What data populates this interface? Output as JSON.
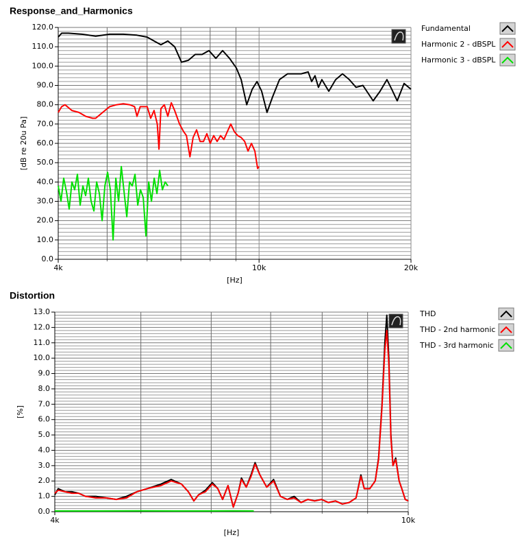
{
  "chart_data": [
    {
      "type": "line",
      "title": "Response_and_Harmonics",
      "xlabel": "[Hz]",
      "ylabel": "[dB re 20u Pa]",
      "xscale": "log",
      "xlim": [
        4000,
        20000
      ],
      "xticks": [
        {
          "value": 4000,
          "label": "4k"
        },
        {
          "value": 10000,
          "label": "10k"
        },
        {
          "value": 20000,
          "label": "20k"
        }
      ],
      "xminor_ticks": [
        5000,
        6000,
        7000,
        8000,
        9000
      ],
      "ylim": [
        0,
        120
      ],
      "yticks": [
        {
          "value": 0,
          "label": "0.0"
        },
        {
          "value": 10,
          "label": "10.0"
        },
        {
          "value": 20,
          "label": "20.0"
        },
        {
          "value": 30,
          "label": "30.0"
        },
        {
          "value": 40,
          "label": "40.0"
        },
        {
          "value": 50,
          "label": "50.0"
        },
        {
          "value": 60,
          "label": "60.0"
        },
        {
          "value": 70,
          "label": "70.0"
        },
        {
          "value": 80,
          "label": "80.0"
        },
        {
          "value": 90,
          "label": "90.0"
        },
        {
          "value": 100,
          "label": "100.0"
        },
        {
          "value": 110,
          "label": "110.0"
        },
        {
          "value": 120,
          "label": "120.0"
        }
      ],
      "grid": true,
      "legend": "right",
      "series": [
        {
          "name": "Fundamental",
          "color": "#000000",
          "x": [
            4000,
            4063,
            4190,
            4458,
            4745,
            5056,
            5383,
            5729,
            6002,
            6193,
            6390,
            6594,
            6804,
            7020,
            7243,
            7473,
            7711,
            7957,
            8210,
            8469,
            8739,
            9017,
            9218,
            9452,
            9692,
            9907,
            10120,
            10370,
            10635,
            10975,
            11391,
            12120,
            12512,
            12712,
            12910,
            13112,
            13320,
            13746,
            14180,
            14630,
            15095,
            15568,
            16062,
            16830,
            17370,
            17920,
            18320,
            18780,
            19380,
            20000
          ],
          "values": [
            115,
            117,
            117,
            116.5,
            115.5,
            116.5,
            116.5,
            116,
            115,
            113,
            111,
            113,
            110,
            102,
            103,
            106,
            106,
            108,
            104,
            108,
            104,
            99,
            93,
            80,
            88,
            92,
            87,
            76,
            84,
            93,
            96,
            96,
            97,
            92,
            95,
            89,
            93,
            87,
            93,
            96,
            93,
            89,
            90,
            82,
            87,
            93,
            88,
            82,
            91,
            88
          ]
        },
        {
          "name": "Harmonic 2 - dBSPL",
          "color": "#ff0000",
          "x": [
            4000,
            4063,
            4126,
            4258,
            4396,
            4535,
            4679,
            4745,
            4900,
            5056,
            5218,
            5383,
            5544,
            5667,
            5729,
            5815,
            5904,
            6002,
            6100,
            6193,
            6286,
            6335,
            6390,
            6490,
            6594,
            6700,
            6804,
            6958,
            7092,
            7180,
            7295,
            7400,
            7520,
            7640,
            7760,
            7880,
            8003,
            8130,
            8260,
            8390,
            8520,
            8650,
            8790,
            8935,
            9075,
            9218,
            9365,
            9510,
            9660,
            9810,
            9935,
            10000
          ],
          "values": [
            76,
            79,
            80,
            77,
            76,
            74,
            73,
            73,
            76,
            79,
            80,
            80.5,
            80,
            79,
            74,
            79,
            79,
            79,
            73,
            77,
            70,
            57,
            78,
            80,
            74,
            81,
            77,
            70,
            66,
            64,
            53,
            63,
            67,
            61,
            61,
            65,
            60,
            64,
            61,
            64,
            62,
            66,
            70,
            66,
            64,
            63,
            61,
            56,
            60,
            56,
            47,
            48
          ]
        },
        {
          "name": "Harmonic 3 - dBSPL",
          "color": "#00e000",
          "x": [
            4000,
            4050,
            4101,
            4153,
            4205,
            4258,
            4312,
            4366,
            4421,
            4477,
            4533,
            4590,
            4648,
            4707,
            4766,
            4826,
            4887,
            4948,
            5011,
            5074,
            5137,
            5202,
            5268,
            5334,
            5401,
            5469,
            5538,
            5608,
            5678,
            5750,
            5822,
            5895,
            5969,
            6044,
            6120,
            6197,
            6275,
            6354,
            6434,
            6515,
            6597
          ],
          "values": [
            38,
            30,
            42,
            35,
            26,
            40,
            36,
            44,
            28,
            38,
            33,
            42,
            30,
            25,
            40,
            34,
            20,
            38,
            45,
            36,
            10,
            42,
            30,
            48,
            35,
            22,
            40,
            38,
            44,
            28,
            36,
            32,
            12,
            40,
            30,
            42,
            34,
            46,
            36,
            40,
            38
          ]
        }
      ]
    },
    {
      "type": "line",
      "title": "Distortion",
      "xlabel": "[Hz]",
      "ylabel": "[%]",
      "xscale": "log",
      "xlim": [
        4000,
        10000
      ],
      "xticks": [
        {
          "value": 4000,
          "label": "4k"
        },
        {
          "value": 10000,
          "label": "10k"
        }
      ],
      "xminor_ticks": [
        5000,
        6000,
        7000,
        8000,
        9000
      ],
      "ylim": [
        0,
        13
      ],
      "yticks": [
        {
          "value": 0,
          "label": "0.0"
        },
        {
          "value": 1,
          "label": "1.0"
        },
        {
          "value": 2,
          "label": "2.0"
        },
        {
          "value": 3,
          "label": "3.0"
        },
        {
          "value": 4,
          "label": "4.0"
        },
        {
          "value": 5,
          "label": "5.0"
        },
        {
          "value": 6,
          "label": "6.0"
        },
        {
          "value": 7,
          "label": "7.0"
        },
        {
          "value": 8,
          "label": "8.0"
        },
        {
          "value": 9,
          "label": "9.0"
        },
        {
          "value": 10,
          "label": "10.0"
        },
        {
          "value": 11,
          "label": "11.0"
        },
        {
          "value": 12,
          "label": "12.0"
        },
        {
          "value": 13,
          "label": "13.0"
        }
      ],
      "grid": true,
      "legend": "right",
      "series": [
        {
          "name": "THD",
          "color": "#000000",
          "x": [
            4000,
            4036,
            4108,
            4181,
            4256,
            4332,
            4449,
            4569,
            4692,
            4818,
            4948,
            5081,
            5267,
            5409,
            5555,
            5655,
            5736,
            5807,
            5911,
            6018,
            6104,
            6180,
            6268,
            6354,
            6433,
            6490,
            6571,
            6653,
            6723,
            6807,
            6929,
            7053,
            7179,
            7308,
            7439,
            7572,
            7709,
            7846,
            7987,
            8130,
            8280,
            8430,
            8580,
            8735,
            8845,
            8922,
            9050,
            9180,
            9260,
            9343,
            9410,
            9460,
            9510,
            9560,
            9611,
            9680,
            9766,
            9834,
            9923,
            10000
          ],
          "values": [
            1.1,
            1.5,
            1.3,
            1.3,
            1.2,
            1.0,
            1.0,
            0.9,
            0.8,
            1.0,
            1.3,
            1.5,
            1.8,
            2.1,
            1.8,
            1.3,
            0.7,
            1.1,
            1.4,
            1.9,
            1.5,
            0.8,
            1.7,
            0.3,
            1.2,
            2.2,
            1.6,
            2.4,
            3.2,
            2.4,
            1.6,
            2.1,
            1.0,
            0.8,
            1.0,
            0.6,
            0.8,
            0.7,
            0.8,
            0.6,
            0.7,
            0.5,
            0.6,
            0.9,
            2.4,
            1.5,
            1.5,
            2.0,
            3.5,
            7.0,
            11.0,
            12.8,
            10.0,
            5.0,
            3.0,
            3.5,
            2.0,
            1.5,
            0.8,
            0.7
          ]
        },
        {
          "name": "THD - 2nd harmonic",
          "color": "#ff0000",
          "x": [
            4000,
            4036,
            4108,
            4181,
            4256,
            4332,
            4449,
            4569,
            4692,
            4818,
            4948,
            5081,
            5267,
            5409,
            5555,
            5655,
            5736,
            5807,
            5911,
            6018,
            6104,
            6180,
            6268,
            6354,
            6433,
            6490,
            6571,
            6653,
            6723,
            6807,
            6929,
            7053,
            7179,
            7308,
            7439,
            7572,
            7709,
            7846,
            7987,
            8130,
            8280,
            8430,
            8580,
            8735,
            8845,
            8922,
            9050,
            9180,
            9260,
            9343,
            9410,
            9460,
            9510,
            9560,
            9611,
            9680,
            9766,
            9834,
            9923,
            10000
          ],
          "values": [
            1.2,
            1.4,
            1.3,
            1.2,
            1.2,
            1.0,
            0.9,
            0.9,
            0.8,
            0.9,
            1.3,
            1.5,
            1.7,
            2.0,
            1.8,
            1.3,
            0.7,
            1.1,
            1.3,
            1.8,
            1.5,
            0.8,
            1.7,
            0.3,
            1.2,
            2.1,
            1.6,
            2.3,
            3.1,
            2.4,
            1.6,
            2.0,
            1.0,
            0.8,
            0.9,
            0.6,
            0.8,
            0.7,
            0.8,
            0.6,
            0.7,
            0.5,
            0.6,
            0.9,
            2.3,
            1.5,
            1.5,
            2.0,
            3.4,
            6.8,
            10.5,
            11.8,
            9.6,
            4.8,
            3.0,
            3.4,
            2.0,
            1.5,
            0.8,
            0.7
          ]
        },
        {
          "name": "THD - 3rd harmonic",
          "color": "#00e000",
          "x": [
            4000,
            4500,
            5000,
            5500,
            6000,
            6350,
            6700
          ],
          "values": [
            0.05,
            0.05,
            0.06,
            0.05,
            0.05,
            0.06,
            0.05
          ]
        }
      ]
    }
  ]
}
